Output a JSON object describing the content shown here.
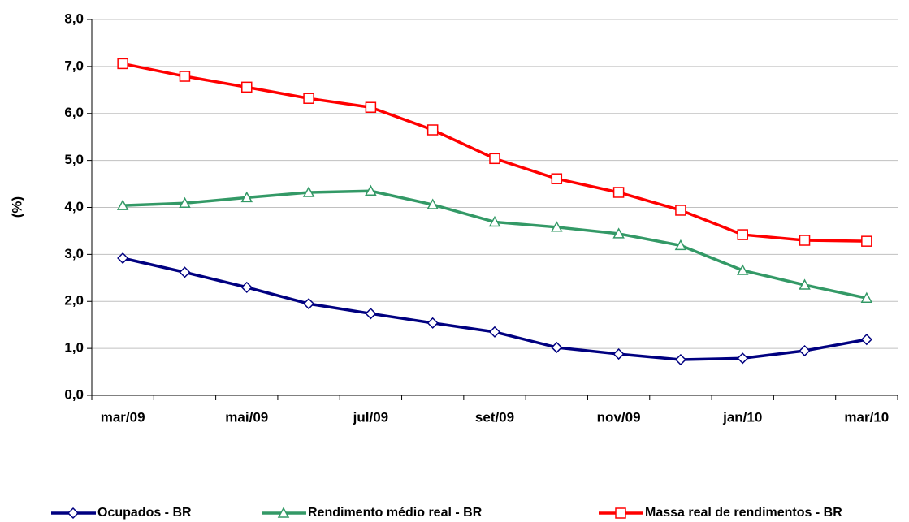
{
  "chart_data": {
    "type": "line",
    "y_label": "(%)",
    "categories": [
      "mar/09",
      null,
      "mai/09",
      null,
      "jul/09",
      null,
      "set/09",
      null,
      "nov/09",
      null,
      "jan/10",
      null,
      "mar/10"
    ],
    "series": [
      {
        "name": "Ocupados - BR",
        "color": "#000080",
        "marker": "diamond",
        "values": [
          2.92,
          2.62,
          2.3,
          1.95,
          1.74,
          1.54,
          1.35,
          1.02,
          0.88,
          0.76,
          0.79,
          0.95,
          1.19
        ]
      },
      {
        "name": "Rendimento médio real - BR",
        "color": "#339966",
        "marker": "triangle",
        "values": [
          4.04,
          4.09,
          4.21,
          4.32,
          4.35,
          4.06,
          3.69,
          3.58,
          3.44,
          3.19,
          2.66,
          2.35,
          2.07
        ]
      },
      {
        "name": "Massa real de rendimentos - BR",
        "color": "#ff0000",
        "marker": "square",
        "values": [
          7.06,
          6.79,
          6.56,
          6.32,
          6.13,
          5.65,
          5.04,
          4.61,
          4.32,
          3.94,
          3.42,
          3.3,
          3.28
        ]
      }
    ],
    "ylim": [
      0,
      8
    ],
    "yticks": [
      {
        "value": 0,
        "label": "0,0"
      },
      {
        "value": 1,
        "label": "1,0"
      },
      {
        "value": 2,
        "label": "2,0"
      },
      {
        "value": 3,
        "label": "3,0"
      },
      {
        "value": 4,
        "label": "4,0"
      },
      {
        "value": 5,
        "label": "5,0"
      },
      {
        "value": 6,
        "label": "6,0"
      },
      {
        "value": 7,
        "label": "7,0"
      },
      {
        "value": 8,
        "label": "8,0"
      }
    ],
    "grid": true,
    "legend": "bottom"
  }
}
